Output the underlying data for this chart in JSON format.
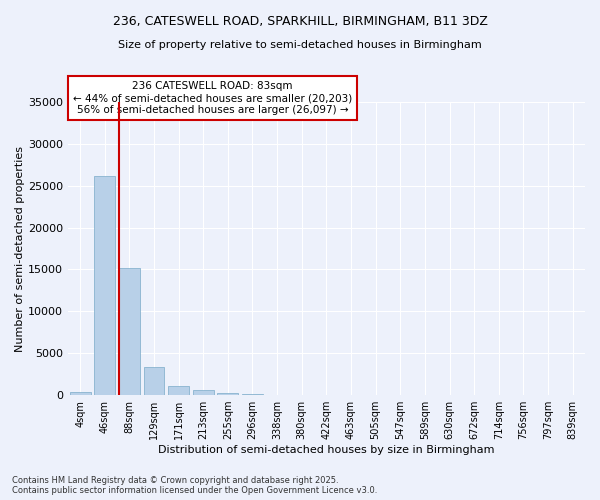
{
  "title_line1": "236, CATESWELL ROAD, SPARKHILL, BIRMINGHAM, B11 3DZ",
  "title_line2": "Size of property relative to semi-detached houses in Birmingham",
  "xlabel": "Distribution of semi-detached houses by size in Birmingham",
  "ylabel": "Number of semi-detached properties",
  "categories": [
    "4sqm",
    "46sqm",
    "88sqm",
    "129sqm",
    "171sqm",
    "213sqm",
    "255sqm",
    "296sqm",
    "338sqm",
    "380sqm",
    "422sqm",
    "463sqm",
    "505sqm",
    "547sqm",
    "589sqm",
    "630sqm",
    "672sqm",
    "714sqm",
    "756sqm",
    "797sqm",
    "839sqm"
  ],
  "values": [
    400,
    26100,
    15200,
    3350,
    1100,
    550,
    280,
    100,
    0,
    0,
    0,
    0,
    0,
    0,
    0,
    0,
    0,
    0,
    0,
    0,
    0
  ],
  "bar_color": "#b8d0e8",
  "bar_edge_color": "#7aaac8",
  "property_line_bin": 2,
  "property_sqm": "83sqm",
  "property_address": "236 CATESWELL ROAD",
  "pct_smaller": 44,
  "n_smaller": "20,203",
  "pct_larger": 56,
  "n_larger": "26,097",
  "annotation_box_color": "#ffffff",
  "annotation_box_edge": "#cc0000",
  "red_line_color": "#cc0000",
  "ylim": [
    0,
    35000
  ],
  "yticks": [
    0,
    5000,
    10000,
    15000,
    20000,
    25000,
    30000,
    35000
  ],
  "background_color": "#edf1fb",
  "grid_color": "#ffffff",
  "footer": "Contains HM Land Registry data © Crown copyright and database right 2025.\nContains public sector information licensed under the Open Government Licence v3.0."
}
